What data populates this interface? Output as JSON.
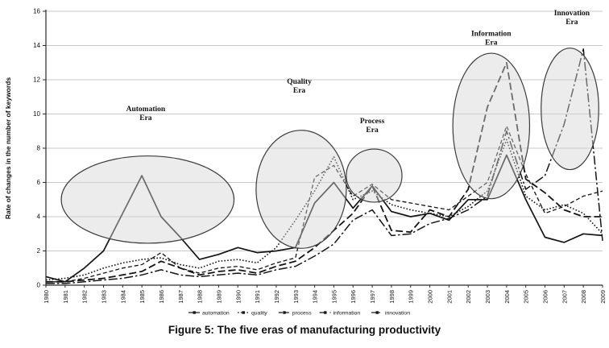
{
  "figure": {
    "caption": "Figure 5: The five eras of manufacturing productivity"
  },
  "colors": {
    "line": "#141414",
    "grid": "#c9c9c9",
    "axis": "#2a2a2a",
    "ellipse_fill": "rgba(212,212,212,0.45)",
    "ellipse_stroke": "#3c3c3c",
    "text": "#111111"
  },
  "chart_data": {
    "type": "line",
    "title": "",
    "xlabel": "",
    "ylabel": "Rate of changes in the number of keywords",
    "ylim": [
      0,
      16
    ],
    "ytick_step": 2,
    "grid": true,
    "legend_position": "bottom",
    "x": [
      1980,
      1981,
      1982,
      1983,
      1984,
      1985,
      1986,
      1987,
      1988,
      1989,
      1990,
      1991,
      1992,
      1993,
      1994,
      1995,
      1996,
      1997,
      1998,
      1999,
      2000,
      2001,
      2002,
      2003,
      2004,
      2005,
      2006,
      2007,
      2008,
      2009
    ],
    "series": [
      {
        "name": "automation",
        "style": "solid",
        "values": [
          0.5,
          0.2,
          1.0,
          2.0,
          4.2,
          6.4,
          4.0,
          2.8,
          1.5,
          1.8,
          2.2,
          1.9,
          2.0,
          2.2,
          4.8,
          6.0,
          4.5,
          5.8,
          4.3,
          4.0,
          4.2,
          3.8,
          5.0,
          5.0,
          7.6,
          5.0,
          2.8,
          2.5,
          3.0,
          2.9
        ]
      },
      {
        "name": "quality",
        "style": "dotted",
        "values": [
          0.3,
          0.4,
          0.6,
          1.0,
          1.3,
          1.5,
          1.6,
          1.2,
          1.0,
          1.4,
          1.5,
          1.3,
          2.2,
          3.8,
          5.5,
          7.5,
          5.0,
          5.5,
          4.7,
          4.4,
          4.2,
          4.0,
          4.6,
          5.5,
          8.5,
          5.2,
          4.4,
          4.7,
          4.2,
          3.0
        ]
      },
      {
        "name": "process",
        "style": "dashed",
        "values": [
          0.2,
          0.2,
          0.4,
          0.7,
          1.0,
          1.2,
          1.9,
          1.0,
          0.7,
          1.0,
          1.1,
          0.9,
          1.3,
          1.6,
          6.3,
          7.0,
          5.2,
          5.9,
          5.0,
          4.8,
          4.6,
          4.4,
          5.2,
          6.0,
          9.3,
          6.5,
          4.2,
          4.6,
          5.2,
          5.5
        ]
      },
      {
        "name": "information",
        "style": "longdash",
        "values": [
          0.2,
          0.2,
          0.3,
          0.4,
          0.6,
          0.8,
          1.4,
          1.0,
          0.6,
          0.8,
          0.9,
          0.7,
          1.1,
          1.4,
          2.2,
          3.2,
          4.2,
          5.8,
          3.2,
          3.1,
          4.4,
          4.0,
          5.6,
          10.4,
          13.0,
          6.2,
          5.4,
          4.4,
          4.0,
          4.0
        ]
      },
      {
        "name": "innovation",
        "style": "dashdot",
        "values": [
          0.1,
          0.1,
          0.2,
          0.3,
          0.4,
          0.6,
          0.9,
          0.6,
          0.5,
          0.6,
          0.7,
          0.6,
          0.9,
          1.1,
          1.7,
          2.4,
          3.8,
          4.4,
          2.9,
          3.0,
          3.6,
          3.9,
          4.4,
          5.2,
          9.0,
          5.6,
          6.4,
          9.4,
          13.8,
          2.6
        ]
      }
    ],
    "annotations": [
      {
        "name": "automation",
        "label_lines": [
          "Automation",
          "Era"
        ],
        "cx": 1985.3,
        "cy": 5.0,
        "rx": 4.5,
        "ry": 2.55,
        "lx": 1985.2,
        "ly": 10.3
      },
      {
        "name": "quality",
        "label_lines": [
          "Quality",
          "Era"
        ],
        "cx": 1993.3,
        "cy": 5.6,
        "rx": 2.35,
        "ry": 3.45,
        "lx": 1993.2,
        "ly": 11.9
      },
      {
        "name": "process",
        "label_lines": [
          "Process",
          "Era"
        ],
        "cx": 1997.1,
        "cy": 6.4,
        "rx": 1.45,
        "ry": 1.55,
        "lx": 1997.0,
        "ly": 9.6
      },
      {
        "name": "information",
        "label_lines": [
          "Information",
          "Era"
        ],
        "cx": 2003.2,
        "cy": 9.3,
        "rx": 2.0,
        "ry": 4.25,
        "lx": 2003.2,
        "ly": 14.7
      },
      {
        "name": "innovation",
        "label_lines": [
          "Innovation",
          "Era"
        ],
        "cx": 2007.3,
        "cy": 10.3,
        "rx": 1.5,
        "ry": 3.55,
        "lx": 2007.4,
        "ly": 15.9
      }
    ]
  }
}
